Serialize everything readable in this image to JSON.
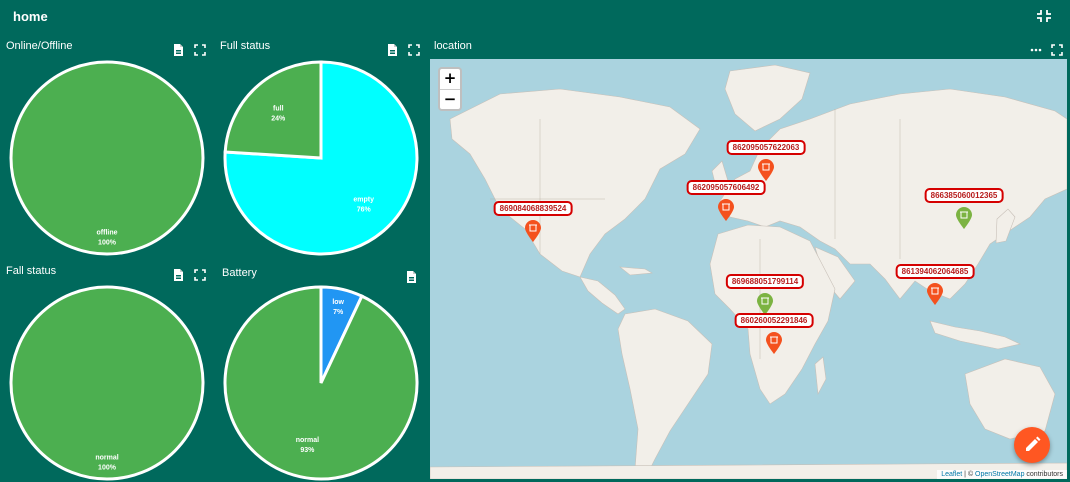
{
  "header": {
    "title": "home"
  },
  "widgets": {
    "online_offline": {
      "title": "Online/Offline"
    },
    "full_status": {
      "title": "Full status"
    },
    "fall_status": {
      "title": "Fall status"
    },
    "battery": {
      "title": "Battery"
    },
    "location": {
      "title": "location"
    }
  },
  "chart_data": [
    {
      "type": "pie",
      "title": "Online/Offline",
      "slices": [
        {
          "label": "offline",
          "percent_label": "100%",
          "value": 100,
          "color": "#4caf50"
        }
      ]
    },
    {
      "type": "pie",
      "title": "Full status",
      "slices": [
        {
          "label": "empty",
          "percent_label": "76%",
          "value": 76,
          "color": "#00ffff"
        },
        {
          "label": "full",
          "percent_label": "24%",
          "value": 24,
          "color": "#4caf50"
        }
      ]
    },
    {
      "type": "pie",
      "title": "Fall status",
      "slices": [
        {
          "label": "normal",
          "percent_label": "100%",
          "value": 100,
          "color": "#4caf50"
        }
      ]
    },
    {
      "type": "pie",
      "title": "Battery",
      "slices": [
        {
          "label": "low",
          "percent_label": "7%",
          "value": 7,
          "color": "#2196f3"
        },
        {
          "label": "normal",
          "percent_label": "93%",
          "value": 93,
          "color": "#4caf50"
        }
      ]
    }
  ],
  "map": {
    "zoom_in": "+",
    "zoom_out": "−",
    "markers": [
      {
        "id": "862095057622063",
        "color": "#f4511e"
      },
      {
        "id": "862095057606492",
        "color": "#f4511e"
      },
      {
        "id": "869084068839524",
        "color": "#f4511e"
      },
      {
        "id": "866385060012365",
        "color": "#7cb342"
      },
      {
        "id": "861394062064685",
        "color": "#f4511e"
      },
      {
        "id": "869688051799114",
        "color": "#7cb342"
      },
      {
        "id": "860260052291846",
        "color": "#f4511e"
      }
    ],
    "attribution": {
      "leaflet": "Leaflet",
      "separator": " | © ",
      "osm": "OpenStreetMap",
      "suffix": " contributors"
    }
  },
  "colors": {
    "background": "#00695c",
    "fab": "#ff5722",
    "marker_border": "#d50000"
  }
}
